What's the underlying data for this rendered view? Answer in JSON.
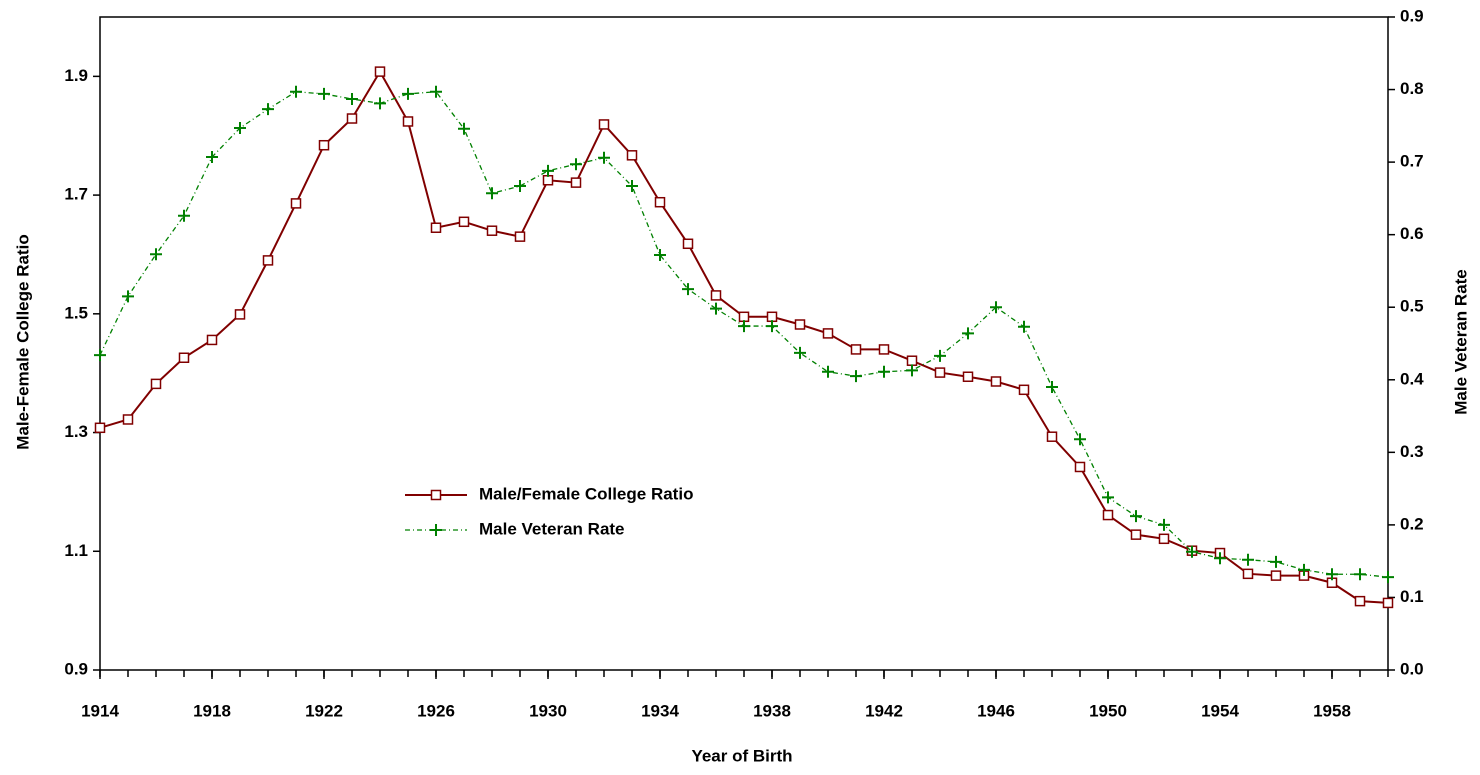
{
  "chart_data": {
    "type": "line",
    "xlabel": "Year of Birth",
    "ylabel": "Male-Female College Ratio",
    "y2label": "Male Veteran Rate",
    "x": [
      1914,
      1915,
      1916,
      1917,
      1918,
      1919,
      1920,
      1921,
      1922,
      1923,
      1924,
      1925,
      1926,
      1927,
      1928,
      1929,
      1930,
      1931,
      1932,
      1933,
      1934,
      1935,
      1936,
      1937,
      1938,
      1939,
      1940,
      1941,
      1942,
      1943,
      1944,
      1945,
      1946,
      1947,
      1948,
      1949,
      1950,
      1951,
      1952,
      1953,
      1954,
      1955,
      1956,
      1957,
      1958,
      1959,
      1960
    ],
    "series": [
      {
        "name": "Male/Female College Ratio",
        "color": "#800000",
        "marker": "square",
        "line": "solid",
        "axis": "y",
        "values": [
          1.308,
          1.322,
          1.382,
          1.426,
          1.456,
          1.499,
          1.59,
          1.686,
          1.784,
          1.829,
          1.908,
          1.824,
          1.645,
          1.655,
          1.64,
          1.63,
          1.725,
          1.721,
          1.819,
          1.767,
          1.688,
          1.618,
          1.531,
          1.495,
          1.495,
          1.482,
          1.467,
          1.44,
          1.44,
          1.421,
          1.401,
          1.394,
          1.386,
          1.372,
          1.293,
          1.242,
          1.161,
          1.128,
          1.121,
          1.101,
          1.097,
          1.062,
          1.059,
          1.059,
          1.047,
          1.016,
          1.013
        ]
      },
      {
        "name": "Male Veteran Rate",
        "color": "#008000",
        "marker": "plus",
        "line": "dashdot",
        "axis": "y2",
        "values": [
          0.434,
          0.515,
          0.573,
          0.626,
          0.707,
          0.747,
          0.773,
          0.797,
          0.794,
          0.787,
          0.781,
          0.794,
          0.797,
          0.746,
          0.657,
          0.667,
          0.688,
          0.697,
          0.706,
          0.667,
          0.572,
          0.525,
          0.498,
          0.474,
          0.474,
          0.437,
          0.411,
          0.405,
          0.411,
          0.413,
          0.433,
          0.464,
          0.5,
          0.473,
          0.39,
          0.318,
          0.238,
          0.212,
          0.2,
          0.163,
          0.154,
          0.152,
          0.149,
          0.138,
          0.132,
          0.132,
          0.128
        ]
      }
    ],
    "xlim": [
      1914,
      1960
    ],
    "xticks": [
      1914,
      1918,
      1922,
      1926,
      1930,
      1934,
      1938,
      1942,
      1946,
      1950,
      1954,
      1958
    ],
    "ylim": [
      0.9,
      2.0
    ],
    "yticks": [
      0.9,
      1.1,
      1.3,
      1.5,
      1.7,
      1.9
    ],
    "y2lim": [
      0,
      0.9
    ],
    "y2ticks": [
      {
        "value": 0,
        "label": "0.0"
      },
      0.1,
      0.2,
      0.3,
      0.4,
      0.5,
      0.6,
      0.7,
      0.8,
      0.9
    ],
    "legend": "center-left",
    "grid": false
  }
}
